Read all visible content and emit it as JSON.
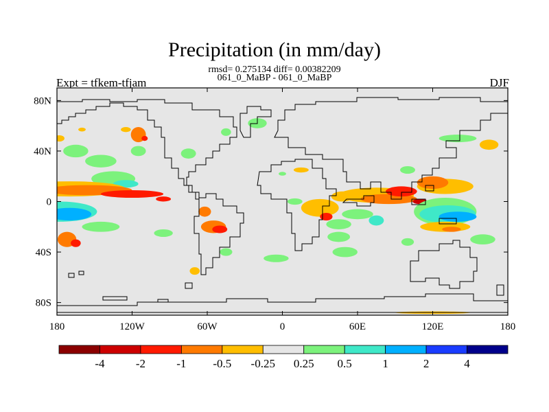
{
  "title": "Precipitation (in mm/day)",
  "stats": "rmsd= 0.275134 diff= 0.00382209",
  "subtitle": "061_0_MaBP - 061_0_MaBP",
  "left_label": "Expt = tfkem-tfjam",
  "right_label": "DJF",
  "chart_data": {
    "type": "heatmap",
    "title": "Precipitation (in mm/day)",
    "xlabel": "",
    "ylabel": "",
    "x_ticks": [
      "180",
      "120W",
      "60W",
      "0",
      "60E",
      "120E",
      "180"
    ],
    "y_ticks": [
      "80N",
      "40N",
      "0",
      "40S",
      "80S"
    ],
    "xlim": [
      -180,
      180
    ],
    "ylim": [
      -90,
      90
    ],
    "colorbar": {
      "labels": [
        "-4",
        "-2",
        "-1",
        "-0.5",
        "-0.25",
        "0.25",
        "0.5",
        "1",
        "2",
        "4"
      ],
      "colors": [
        "#8b0000",
        "#cd0000",
        "#ff1a00",
        "#ff7a00",
        "#ffbe00",
        "#e6e6e6",
        "#7cf27c",
        "#3fe8c8",
        "#00b0ff",
        "#1a3cff",
        "#00008b"
      ]
    },
    "background_color": "#e6e6e6",
    "regions": [
      {
        "lon": -178,
        "lat": 50,
        "w": 8,
        "h": 5,
        "value": -0.3
      },
      {
        "lon": -160,
        "lat": 57,
        "w": 6,
        "h": 3,
        "value": -0.3
      },
      {
        "lon": -125,
        "lat": 57,
        "w": 8,
        "h": 4,
        "value": -0.3
      },
      {
        "lon": -115,
        "lat": 53,
        "w": 12,
        "h": 12,
        "value": -0.6
      },
      {
        "lon": -110,
        "lat": 50,
        "w": 5,
        "h": 4,
        "value": -1.5
      },
      {
        "lon": -165,
        "lat": 40,
        "w": 20,
        "h": 10,
        "value": 0.3
      },
      {
        "lon": -145,
        "lat": 32,
        "w": 25,
        "h": 10,
        "value": 0.3
      },
      {
        "lon": -115,
        "lat": 40,
        "w": 12,
        "h": 8,
        "value": 0.3
      },
      {
        "lon": -135,
        "lat": 18,
        "w": 35,
        "h": 12,
        "value": 0.3
      },
      {
        "lon": -125,
        "lat": 14,
        "w": 20,
        "h": 6,
        "value": 0.7
      },
      {
        "lon": -75,
        "lat": 38,
        "w": 12,
        "h": 8,
        "value": 0.3
      },
      {
        "lon": -45,
        "lat": 55,
        "w": 8,
        "h": 6,
        "value": 0.3
      },
      {
        "lon": -20,
        "lat": 62,
        "w": 15,
        "h": 8,
        "value": 0.3
      },
      {
        "lon": -170,
        "lat": 10,
        "w": 90,
        "h": 12,
        "value": -0.3
      },
      {
        "lon": -155,
        "lat": 9,
        "w": 70,
        "h": 8,
        "value": -0.7
      },
      {
        "lon": -120,
        "lat": 6,
        "w": 50,
        "h": 6,
        "value": -1.5
      },
      {
        "lon": -95,
        "lat": 2,
        "w": 12,
        "h": 4,
        "value": -1.5
      },
      {
        "lon": -178,
        "lat": -8,
        "w": 60,
        "h": 16,
        "value": 0.7
      },
      {
        "lon": -170,
        "lat": -10,
        "w": 35,
        "h": 10,
        "value": 1.5
      },
      {
        "lon": -172,
        "lat": -30,
        "w": 15,
        "h": 12,
        "value": -0.6
      },
      {
        "lon": -165,
        "lat": -33,
        "w": 8,
        "h": 6,
        "value": -1.5
      },
      {
        "lon": -62,
        "lat": -8,
        "w": 10,
        "h": 8,
        "value": -0.7
      },
      {
        "lon": -55,
        "lat": -20,
        "w": 20,
        "h": 10,
        "value": -0.7
      },
      {
        "lon": -50,
        "lat": -22,
        "w": 12,
        "h": 6,
        "value": -1.5
      },
      {
        "lon": -45,
        "lat": -40,
        "w": 10,
        "h": 6,
        "value": 0.3
      },
      {
        "lon": -70,
        "lat": -55,
        "w": 8,
        "h": 6,
        "value": -0.3
      },
      {
        "lon": 15,
        "lat": 25,
        "w": 12,
        "h": 4,
        "value": -0.3
      },
      {
        "lon": 0,
        "lat": 22,
        "w": 6,
        "h": 3,
        "value": 0.3
      },
      {
        "lon": 10,
        "lat": 0,
        "w": 12,
        "h": 5,
        "value": 0.3
      },
      {
        "lon": 30,
        "lat": -5,
        "w": 30,
        "h": 14,
        "value": -0.3
      },
      {
        "lon": 35,
        "lat": -12,
        "w": 10,
        "h": 6,
        "value": -1.5
      },
      {
        "lon": 45,
        "lat": -18,
        "w": 20,
        "h": 8,
        "value": 0.3
      },
      {
        "lon": 45,
        "lat": -28,
        "w": 18,
        "h": 8,
        "value": 0.3
      },
      {
        "lon": 50,
        "lat": -40,
        "w": 20,
        "h": 8,
        "value": 0.3
      },
      {
        "lon": 60,
        "lat": -10,
        "w": 25,
        "h": 8,
        "value": 0.3
      },
      {
        "lon": 75,
        "lat": -15,
        "w": 12,
        "h": 8,
        "value": 0.7
      },
      {
        "lon": 48,
        "lat": 4,
        "w": 18,
        "h": 8,
        "value": -0.3
      },
      {
        "lon": 75,
        "lat": 5,
        "w": 60,
        "h": 12,
        "value": -0.3
      },
      {
        "lon": 85,
        "lat": 2,
        "w": 45,
        "h": 8,
        "value": -0.7
      },
      {
        "lon": 95,
        "lat": 8,
        "w": 25,
        "h": 8,
        "value": -1.5
      },
      {
        "lon": 110,
        "lat": 0,
        "w": 12,
        "h": 4,
        "value": -3
      },
      {
        "lon": 130,
        "lat": 12,
        "w": 45,
        "h": 12,
        "value": -0.3
      },
      {
        "lon": 120,
        "lat": 15,
        "w": 25,
        "h": 10,
        "value": -0.7
      },
      {
        "lon": 100,
        "lat": 25,
        "w": 12,
        "h": 6,
        "value": 0.3
      },
      {
        "lon": 130,
        "lat": -8,
        "w": 50,
        "h": 22,
        "value": 0.3
      },
      {
        "lon": 132,
        "lat": -10,
        "w": 45,
        "h": 14,
        "value": 0.7
      },
      {
        "lon": 140,
        "lat": -12,
        "w": 30,
        "h": 8,
        "value": 1.5
      },
      {
        "lon": 130,
        "lat": -20,
        "w": 40,
        "h": 8,
        "value": -0.3
      },
      {
        "lon": 135,
        "lat": -22,
        "w": 15,
        "h": 4,
        "value": -0.7
      },
      {
        "lon": 100,
        "lat": -32,
        "w": 10,
        "h": 6,
        "value": 0.3
      },
      {
        "lon": 140,
        "lat": 50,
        "w": 30,
        "h": 6,
        "value": 0.3
      },
      {
        "lon": 165,
        "lat": 45,
        "w": 15,
        "h": 8,
        "value": -0.3
      },
      {
        "lon": 120,
        "lat": -88,
        "w": 60,
        "h": 2,
        "value": -0.3
      },
      {
        "lon": -145,
        "lat": -20,
        "w": 30,
        "h": 8,
        "value": 0.3
      },
      {
        "lon": -95,
        "lat": -25,
        "w": 15,
        "h": 6,
        "value": 0.3
      },
      {
        "lon": -5,
        "lat": -45,
        "w": 20,
        "h": 6,
        "value": 0.3
      },
      {
        "lon": 160,
        "lat": -30,
        "w": 20,
        "h": 8,
        "value": 0.3
      }
    ]
  }
}
